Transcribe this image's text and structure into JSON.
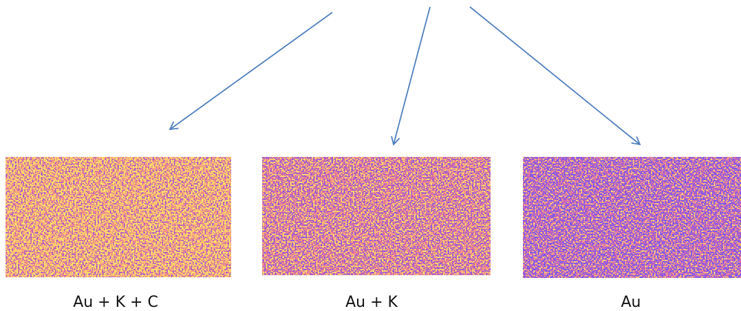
{
  "panels": [
    {
      "label": "Au + K + C"
    },
    {
      "label": "Au + K"
    },
    {
      "label": "Au"
    }
  ]
}
